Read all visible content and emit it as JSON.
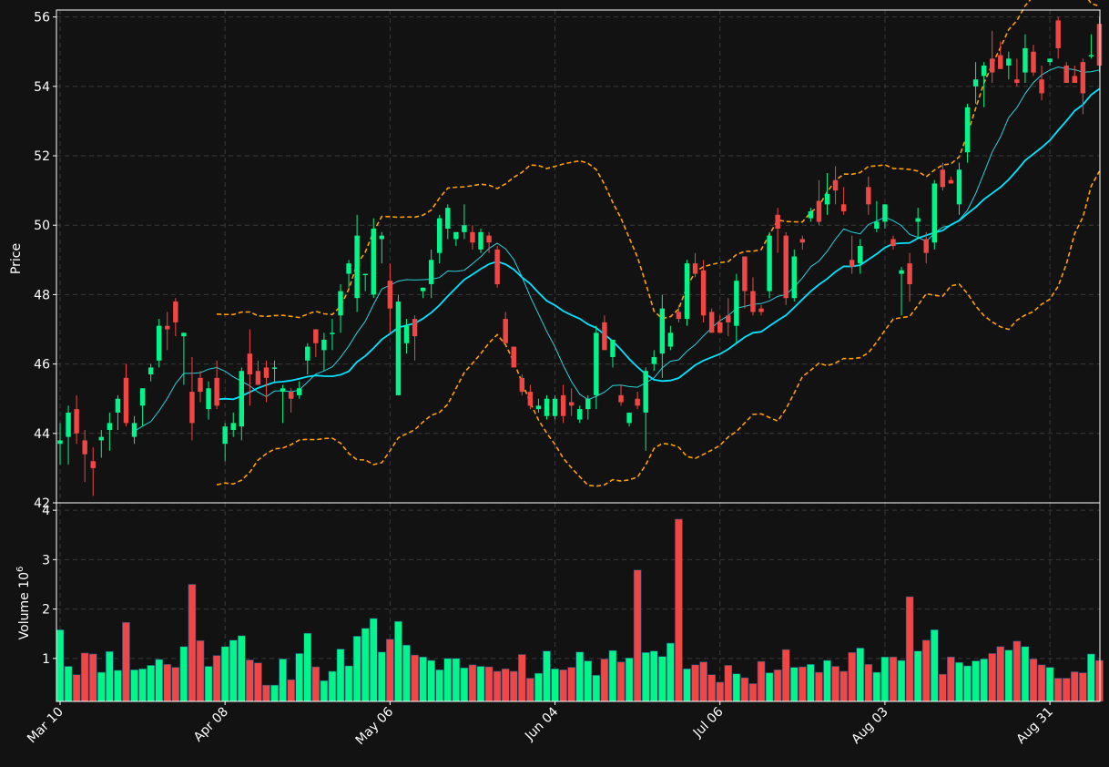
{
  "chart_data": {
    "type": "candlestick",
    "colors": {
      "background": "#121212",
      "up": "#00f58a",
      "down": "#f04646",
      "sma_short": "#28d2dc",
      "sma_long": "#00e5ff",
      "bollinger": "#ffa000",
      "grid": "#3a3a3a",
      "text": "#ffffff"
    },
    "price_panel": {
      "ylabel": "Price",
      "ylim": [
        42,
        56.2
      ],
      "yticks": [
        42,
        44,
        46,
        48,
        50,
        52,
        54,
        56
      ]
    },
    "volume_panel": {
      "ylabel": "Volume",
      "ylabel_exponent": "10",
      "ylabel_power": "6",
      "ylim": [
        0.13,
        4.15
      ],
      "yticks": [
        1,
        2,
        3,
        4
      ]
    },
    "x_tick_labels": [
      {
        "label": "Mar 10",
        "index": 0
      },
      {
        "label": "Apr 08",
        "index": 20
      },
      {
        "label": "May 06",
        "index": 40
      },
      {
        "label": "Jun 04",
        "index": 60
      },
      {
        "label": "Jul 06",
        "index": 80
      },
      {
        "label": "Aug 03",
        "index": 100
      },
      {
        "label": "Aug 31",
        "index": 120
      }
    ],
    "n_bars": 127,
    "ohlc": [
      [
        43.7,
        44.3,
        43.1,
        43.8
      ],
      [
        43.9,
        44.8,
        43.1,
        44.6
      ],
      [
        44.7,
        45.1,
        43.7,
        44.0
      ],
      [
        43.8,
        44.1,
        42.6,
        43.4
      ],
      [
        43.2,
        43.6,
        42.2,
        43.0
      ],
      [
        43.8,
        44.1,
        43.3,
        43.9
      ],
      [
        44.1,
        44.6,
        43.5,
        44.3
      ],
      [
        44.6,
        45.1,
        44.1,
        45.0
      ],
      [
        45.6,
        46.0,
        44.2,
        44.3
      ],
      [
        43.9,
        44.5,
        43.7,
        44.3
      ],
      [
        44.8,
        45.3,
        44.2,
        45.3
      ],
      [
        45.7,
        46.0,
        45.5,
        45.9
      ],
      [
        46.1,
        47.3,
        45.9,
        47.1
      ],
      [
        47.1,
        47.5,
        46.4,
        47.0
      ],
      [
        47.8,
        47.9,
        46.8,
        47.2
      ],
      [
        46.8,
        46.9,
        45.4,
        46.9
      ],
      [
        45.2,
        46.2,
        43.8,
        44.3
      ],
      [
        45.6,
        45.8,
        44.9,
        45.2
      ],
      [
        44.7,
        45.5,
        44.4,
        45.3
      ],
      [
        45.6,
        46.1,
        44.7,
        44.8
      ],
      [
        43.7,
        44.3,
        43.2,
        44.2
      ],
      [
        44.1,
        44.6,
        43.9,
        44.3
      ],
      [
        44.2,
        45.9,
        43.8,
        45.8
      ],
      [
        46.3,
        47.0,
        44.8,
        45.7
      ],
      [
        45.8,
        46.1,
        45.4,
        45.4
      ],
      [
        45.9,
        46.1,
        44.9,
        45.6
      ],
      [
        45.9,
        46.1,
        45.5,
        45.9
      ],
      [
        45.2,
        45.4,
        44.3,
        45.3
      ],
      [
        45.2,
        45.3,
        44.6,
        45.0
      ],
      [
        45.1,
        45.5,
        45.0,
        45.3
      ],
      [
        46.1,
        46.6,
        45.7,
        46.5
      ],
      [
        47.0,
        47.0,
        46.2,
        46.6
      ],
      [
        46.4,
        46.9,
        45.8,
        46.7
      ],
      [
        46.9,
        47.3,
        46.4,
        46.9
      ],
      [
        47.4,
        48.3,
        46.9,
        48.1
      ],
      [
        48.6,
        49.0,
        48.2,
        48.9
      ],
      [
        47.9,
        50.3,
        47.5,
        49.7
      ],
      [
        48.6,
        48.6,
        48.1,
        48.6
      ],
      [
        48.0,
        50.2,
        47.9,
        49.9
      ],
      [
        49.6,
        49.8,
        48.9,
        49.7
      ],
      [
        48.4,
        48.9,
        46.9,
        47.6
      ],
      [
        45.1,
        48.0,
        45.1,
        47.8
      ],
      [
        46.6,
        47.3,
        46.3,
        47.1
      ],
      [
        47.3,
        47.4,
        46.1,
        46.8
      ],
      [
        48.1,
        48.2,
        47.9,
        48.2
      ],
      [
        48.3,
        49.3,
        47.9,
        49.0
      ],
      [
        49.2,
        50.3,
        48.9,
        50.2
      ],
      [
        49.9,
        50.6,
        49.6,
        50.5
      ],
      [
        49.6,
        49.8,
        49.4,
        49.8
      ],
      [
        49.8,
        50.6,
        49.6,
        50.0
      ],
      [
        49.8,
        50.0,
        49.3,
        49.5
      ],
      [
        49.3,
        49.9,
        49.2,
        49.8
      ],
      [
        49.7,
        49.8,
        49.2,
        49.5
      ],
      [
        49.3,
        49.4,
        48.2,
        48.3
      ],
      [
        47.3,
        47.5,
        46.6,
        46.6
      ],
      [
        46.5,
        46.5,
        45.9,
        45.9
      ],
      [
        45.6,
        45.7,
        45.1,
        45.2
      ],
      [
        45.2,
        45.4,
        44.7,
        44.8
      ],
      [
        44.7,
        45.0,
        44.6,
        44.8
      ],
      [
        44.5,
        45.1,
        44.4,
        45.0
      ],
      [
        44.5,
        45.1,
        44.4,
        45.0
      ],
      [
        45.1,
        45.4,
        44.3,
        44.5
      ],
      [
        44.9,
        45.3,
        44.5,
        44.8
      ],
      [
        44.4,
        44.8,
        44.3,
        44.7
      ],
      [
        44.7,
        45.1,
        44.4,
        45.0
      ],
      [
        45.1,
        47.1,
        44.7,
        46.9
      ],
      [
        47.2,
        47.4,
        46.5,
        46.4
      ],
      [
        46.2,
        46.6,
        45.9,
        46.7
      ],
      [
        45.1,
        45.4,
        44.8,
        44.9
      ],
      [
        44.3,
        44.6,
        44.2,
        44.6
      ],
      [
        45.0,
        45.2,
        44.7,
        44.8
      ],
      [
        44.6,
        45.9,
        43.5,
        45.8
      ],
      [
        46.0,
        46.4,
        45.8,
        46.2
      ],
      [
        46.3,
        48.0,
        45.6,
        47.6
      ],
      [
        46.5,
        47.1,
        46.4,
        46.9
      ],
      [
        47.5,
        47.7,
        47.2,
        47.3
      ],
      [
        47.3,
        49.0,
        47.1,
        48.9
      ],
      [
        48.9,
        49.2,
        48.5,
        48.6
      ],
      [
        48.7,
        49.0,
        47.2,
        47.4
      ],
      [
        47.5,
        47.6,
        46.9,
        46.9
      ],
      [
        47.2,
        47.4,
        46.9,
        46.9
      ],
      [
        47.4,
        47.9,
        46.8,
        47.2
      ],
      [
        47.1,
        48.6,
        46.6,
        48.4
      ],
      [
        49.1,
        49.1,
        47.6,
        48.1
      ],
      [
        48.1,
        48.5,
        47.4,
        47.5
      ],
      [
        47.6,
        47.7,
        47.4,
        47.5
      ],
      [
        48.1,
        49.8,
        47.9,
        49.7
      ],
      [
        50.3,
        50.5,
        49.2,
        49.9
      ],
      [
        49.7,
        49.8,
        47.7,
        47.9
      ],
      [
        47.9,
        49.3,
        47.8,
        49.1
      ],
      [
        49.6,
        49.7,
        49.3,
        49.5
      ],
      [
        50.2,
        50.5,
        50.1,
        50.4
      ],
      [
        50.7,
        51.3,
        50.0,
        50.1
      ],
      [
        50.6,
        51.5,
        50.3,
        50.9
      ],
      [
        51.3,
        51.7,
        50.6,
        51.0
      ],
      [
        50.6,
        51.1,
        50.3,
        50.4
      ],
      [
        49.0,
        49.7,
        48.6,
        48.8
      ],
      [
        48.9,
        49.6,
        48.6,
        49.4
      ],
      [
        51.1,
        51.4,
        50.3,
        50.6
      ],
      [
        49.9,
        50.7,
        49.8,
        50.1
      ],
      [
        50.1,
        50.6,
        49.9,
        50.6
      ],
      [
        49.6,
        49.7,
        49.3,
        49.4
      ],
      [
        48.6,
        48.8,
        47.4,
        48.7
      ],
      [
        48.9,
        49.2,
        47.8,
        48.3
      ],
      [
        50.1,
        50.5,
        49.6,
        50.2
      ],
      [
        49.6,
        49.8,
        48.9,
        49.2
      ],
      [
        49.5,
        51.3,
        49.3,
        51.2
      ],
      [
        51.6,
        51.8,
        51.0,
        51.1
      ],
      [
        51.3,
        51.4,
        51.2,
        51.2
      ],
      [
        50.6,
        51.8,
        50.3,
        51.6
      ],
      [
        52.1,
        53.5,
        51.8,
        53.4
      ],
      [
        54.0,
        54.7,
        53.5,
        54.2
      ],
      [
        54.3,
        54.7,
        53.4,
        54.6
      ],
      [
        54.8,
        55.6,
        54.1,
        54.4
      ],
      [
        54.9,
        55.3,
        54.5,
        54.5
      ],
      [
        54.6,
        55.0,
        54.2,
        54.8
      ],
      [
        54.2,
        54.8,
        54.0,
        54.1
      ],
      [
        54.4,
        55.5,
        54.1,
        55.1
      ],
      [
        55.0,
        55.2,
        54.3,
        54.4
      ],
      [
        54.2,
        54.6,
        53.6,
        53.8
      ],
      [
        54.7,
        54.8,
        54.6,
        54.8
      ],
      [
        55.9,
        56.0,
        54.8,
        55.1
      ],
      [
        54.6,
        54.7,
        54.1,
        54.1
      ],
      [
        54.3,
        54.6,
        54.1,
        54.1
      ],
      [
        54.7,
        54.8,
        53.2,
        53.8
      ],
      [
        54.9,
        55.5,
        54.8,
        54.9
      ],
      [
        55.8,
        56.0,
        54.4,
        54.6
      ]
    ],
    "volume_millions": [
      1.58,
      0.84,
      0.67,
      1.11,
      1.09,
      0.72,
      1.14,
      0.76,
      1.73,
      0.77,
      0.79,
      0.86,
      0.98,
      0.88,
      0.82,
      1.24,
      2.5,
      1.36,
      0.84,
      1.06,
      1.24,
      1.37,
      1.46,
      0.97,
      0.91,
      0.46,
      0.46,
      0.99,
      0.57,
      1.1,
      1.51,
      0.83,
      0.55,
      0.74,
      1.19,
      0.85,
      1.45,
      1.61,
      1.81,
      1.13,
      1.39,
      1.75,
      1.27,
      1.07,
      1.03,
      0.96,
      0.77,
      1.0,
      1.0,
      0.81,
      0.87,
      0.84,
      0.83,
      0.74,
      0.79,
      0.74,
      1.08,
      0.6,
      0.7,
      1.15,
      0.79,
      0.77,
      0.82,
      1.13,
      0.95,
      0.66,
      0.99,
      1.16,
      0.93,
      1.01,
      2.79,
      1.12,
      1.15,
      1.04,
      1.31,
      3.82,
      0.79,
      0.87,
      0.93,
      0.67,
      0.52,
      0.86,
      0.69,
      0.61,
      0.49,
      0.94,
      0.71,
      0.77,
      1.18,
      0.82,
      0.83,
      0.88,
      0.72,
      0.96,
      0.84,
      0.74,
      1.12,
      1.21,
      0.88,
      0.72,
      1.03,
      1.03,
      0.96,
      2.25,
      1.15,
      1.37,
      1.58,
      0.68,
      1.03,
      0.92,
      0.85,
      0.95,
      0.99,
      1.1,
      1.24,
      1.17,
      1.35,
      1.24,
      0.99,
      0.87,
      0.82,
      0.6,
      0.6,
      0.73,
      0.71,
      1.09,
      0.96
    ]
  }
}
